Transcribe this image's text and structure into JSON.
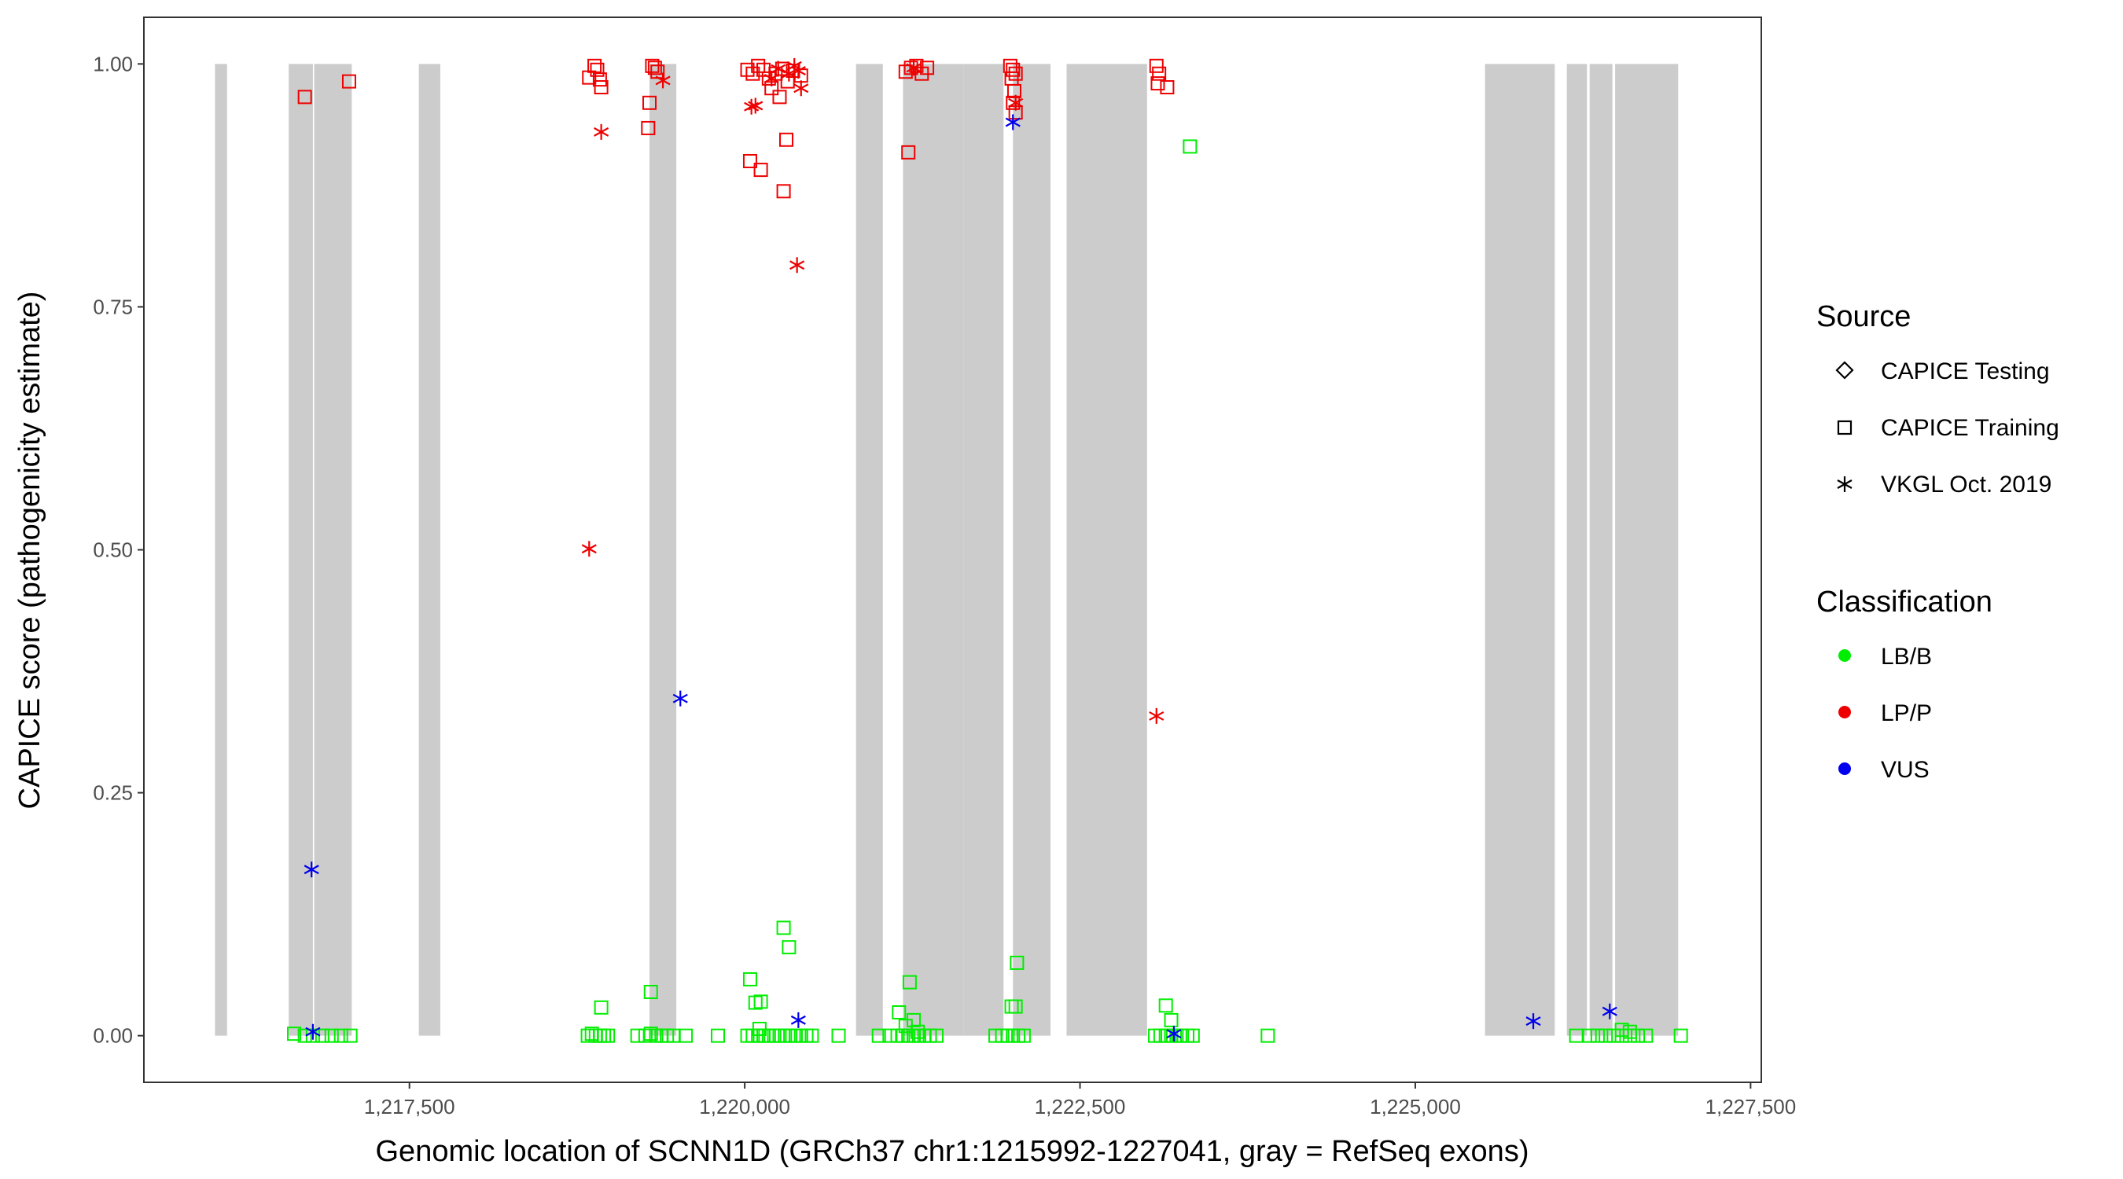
{
  "chart_data": {
    "type": "scatter",
    "title": "",
    "xlabel": "Genomic location of SCNN1D (GRCh37 chr1:1215992-1227041, gray = RefSeq exons)",
    "ylabel": "CAPICE score (pathogenicity estimate)",
    "xlim": [
      1215520,
      1227580
    ],
    "ylim": [
      -0.048,
      1.048
    ],
    "x_ticks": [
      1217500,
      1220000,
      1222500,
      1225000,
      1227500
    ],
    "x_tick_labels": [
      "1,217,500",
      "1,220,000",
      "1,222,500",
      "1,225,000",
      "1,227,500"
    ],
    "y_ticks": [
      0,
      0.25,
      0.5,
      0.75,
      1
    ],
    "y_tick_labels": [
      "0.00",
      "0.25",
      "0.50",
      "0.75",
      "1.00"
    ],
    "exons": [
      [
        1216050,
        1216140
      ],
      [
        1216600,
        1216780
      ],
      [
        1216790,
        1217070
      ],
      [
        1217570,
        1217730
      ],
      [
        1219290,
        1219490
      ],
      [
        1220830,
        1221030
      ],
      [
        1221180,
        1221630
      ],
      [
        1221630,
        1221930
      ],
      [
        1222000,
        1222280
      ],
      [
        1222400,
        1223000
      ],
      [
        1225520,
        1226040
      ],
      [
        1226130,
        1226280
      ],
      [
        1226300,
        1226470
      ],
      [
        1226490,
        1226960
      ]
    ],
    "colors": {
      "LB/B": "#00ee00",
      "LP/P": "#ee0000",
      "VUS": "#0000ee",
      "exon": "#cccccc"
    },
    "legend": {
      "source_title": "Source",
      "source_items": [
        {
          "label": "CAPICE Testing",
          "shape": "diamond"
        },
        {
          "label": "CAPICE Training",
          "shape": "square"
        },
        {
          "label": "VKGL Oct. 2019",
          "shape": "asterisk"
        }
      ],
      "class_title": "Classification",
      "class_items": [
        {
          "label": "LB/B",
          "color": "#00ee00"
        },
        {
          "label": "LP/P",
          "color": "#ee0000"
        },
        {
          "label": "VUS",
          "color": "#0000ee"
        }
      ]
    },
    "series": [
      {
        "name": "LP/P - CAPICE Training",
        "class": "LP/P",
        "shape": "square",
        "points": [
          [
            1216720,
            0.966
          ],
          [
            1217050,
            0.982
          ],
          [
            1218840,
            0.986
          ],
          [
            1218880,
            0.998
          ],
          [
            1218900,
            0.994
          ],
          [
            1218920,
            0.984
          ],
          [
            1218930,
            0.976
          ],
          [
            1219310,
            0.998
          ],
          [
            1219330,
            0.996
          ],
          [
            1219350,
            0.992
          ],
          [
            1219290,
            0.96
          ],
          [
            1219280,
            0.934
          ],
          [
            1220020,
            0.994
          ],
          [
            1220060,
            0.99
          ],
          [
            1220100,
            0.998
          ],
          [
            1220140,
            0.994
          ],
          [
            1220180,
            0.985
          ],
          [
            1220230,
            0.99
          ],
          [
            1220280,
            0.995
          ],
          [
            1220320,
            0.982
          ],
          [
            1220360,
            0.993
          ],
          [
            1220420,
            0.988
          ],
          [
            1220200,
            0.975
          ],
          [
            1220260,
            0.966
          ],
          [
            1220040,
            0.9
          ],
          [
            1220120,
            0.891
          ],
          [
            1220310,
            0.922
          ],
          [
            1220290,
            0.869
          ],
          [
            1221200,
            0.992
          ],
          [
            1221240,
            0.996
          ],
          [
            1221280,
            0.998
          ],
          [
            1221320,
            0.99
          ],
          [
            1221360,
            0.996
          ],
          [
            1221220,
            0.909
          ],
          [
            1221980,
            0.998
          ],
          [
            1222000,
            0.994
          ],
          [
            1222020,
            0.99
          ],
          [
            1221990,
            0.985
          ],
          [
            1222010,
            0.972
          ],
          [
            1222000,
            0.96
          ],
          [
            1222020,
            0.95
          ],
          [
            1223070,
            0.998
          ],
          [
            1223090,
            0.99
          ],
          [
            1223080,
            0.98
          ],
          [
            1223150,
            0.976
          ]
        ]
      },
      {
        "name": "LP/P - VKGL Oct. 2019",
        "class": "LP/P",
        "shape": "asterisk",
        "points": [
          [
            1218930,
            0.93
          ],
          [
            1218840,
            0.501
          ],
          [
            1219390,
            0.983
          ],
          [
            1220050,
            0.956
          ],
          [
            1220080,
            0.957
          ],
          [
            1220200,
            0.985
          ],
          [
            1220250,
            0.995
          ],
          [
            1220330,
            0.99
          ],
          [
            1220370,
            0.998
          ],
          [
            1220400,
            0.993
          ],
          [
            1220420,
            0.975
          ],
          [
            1220390,
            0.793
          ],
          [
            1221260,
            0.996
          ],
          [
            1222020,
            0.96
          ],
          [
            1223070,
            0.329
          ]
        ]
      },
      {
        "name": "LB/B - CAPICE Training",
        "class": "LB/B",
        "shape": "square",
        "points": [
          [
            1216640,
            0.002
          ],
          [
            1216720,
            0.0
          ],
          [
            1216780,
            0.0
          ],
          [
            1216850,
            0.0
          ],
          [
            1216920,
            0.0
          ],
          [
            1216990,
            0.0
          ],
          [
            1217060,
            0.0
          ],
          [
            1218830,
            0.0
          ],
          [
            1218860,
            0.002
          ],
          [
            1218890,
            0.0
          ],
          [
            1218920,
            0.0
          ],
          [
            1218950,
            0.0
          ],
          [
            1218980,
            0.0
          ],
          [
            1218930,
            0.029
          ],
          [
            1219200,
            0.0
          ],
          [
            1219260,
            0.0
          ],
          [
            1219300,
            0.002
          ],
          [
            1219340,
            0.0
          ],
          [
            1219380,
            0.0
          ],
          [
            1219420,
            0.0
          ],
          [
            1219470,
            0.0
          ],
          [
            1219560,
            0.0
          ],
          [
            1219300,
            0.045
          ],
          [
            1219800,
            0.0
          ],
          [
            1220020,
            0.0
          ],
          [
            1220060,
            0.0
          ],
          [
            1220100,
            0.0
          ],
          [
            1220140,
            0.0
          ],
          [
            1220180,
            0.0
          ],
          [
            1220220,
            0.0
          ],
          [
            1220260,
            0.0
          ],
          [
            1220300,
            0.0
          ],
          [
            1220340,
            0.0
          ],
          [
            1220380,
            0.0
          ],
          [
            1220420,
            0.0
          ],
          [
            1220460,
            0.0
          ],
          [
            1220500,
            0.0
          ],
          [
            1220040,
            0.058
          ],
          [
            1220080,
            0.034
          ],
          [
            1220120,
            0.035
          ],
          [
            1220110,
            0.007
          ],
          [
            1220290,
            0.111
          ],
          [
            1220330,
            0.091
          ],
          [
            1220700,
            0.0
          ],
          [
            1221000,
            0.0
          ],
          [
            1221080,
            0.0
          ],
          [
            1221140,
            0.0
          ],
          [
            1221180,
            0.0
          ],
          [
            1221220,
            0.0
          ],
          [
            1221260,
            0.0
          ],
          [
            1221300,
            0.0
          ],
          [
            1221340,
            0.0
          ],
          [
            1221380,
            0.0
          ],
          [
            1221430,
            0.0
          ],
          [
            1221150,
            0.024
          ],
          [
            1221230,
            0.055
          ],
          [
            1221200,
            0.01
          ],
          [
            1221260,
            0.016
          ],
          [
            1221290,
            0.004
          ],
          [
            1221870,
            0.0
          ],
          [
            1221920,
            0.0
          ],
          [
            1221960,
            0.0
          ],
          [
            1222000,
            0.0
          ],
          [
            1222040,
            0.0
          ],
          [
            1222080,
            0.0
          ],
          [
            1221990,
            0.03
          ],
          [
            1222020,
            0.03
          ],
          [
            1222030,
            0.075
          ],
          [
            1223060,
            0.0
          ],
          [
            1223100,
            0.0
          ],
          [
            1223140,
            0.0
          ],
          [
            1223180,
            0.0
          ],
          [
            1223220,
            0.0
          ],
          [
            1223260,
            0.0
          ],
          [
            1223300,
            0.0
          ],
          [
            1223340,
            0.0
          ],
          [
            1223140,
            0.031
          ],
          [
            1223180,
            0.016
          ],
          [
            1223320,
            0.915
          ],
          [
            1223900,
            0.0
          ],
          [
            1226200,
            0.0
          ],
          [
            1226300,
            0.0
          ],
          [
            1226360,
            0.0
          ],
          [
            1226420,
            0.0
          ],
          [
            1226480,
            0.0
          ],
          [
            1226540,
            0.0
          ],
          [
            1226600,
            0.0
          ],
          [
            1226660,
            0.0
          ],
          [
            1226720,
            0.0
          ],
          [
            1226540,
            0.006
          ],
          [
            1226600,
            0.004
          ],
          [
            1226980,
            0.0
          ]
        ]
      },
      {
        "name": "VUS - VKGL Oct. 2019",
        "class": "VUS",
        "shape": "asterisk",
        "points": [
          [
            1216770,
            0.171
          ],
          [
            1216780,
            0.004
          ],
          [
            1219520,
            0.347
          ],
          [
            1220400,
            0.016
          ],
          [
            1222000,
            0.94
          ],
          [
            1223200,
            0.002
          ],
          [
            1225880,
            0.015
          ],
          [
            1226450,
            0.025
          ]
        ]
      }
    ]
  }
}
